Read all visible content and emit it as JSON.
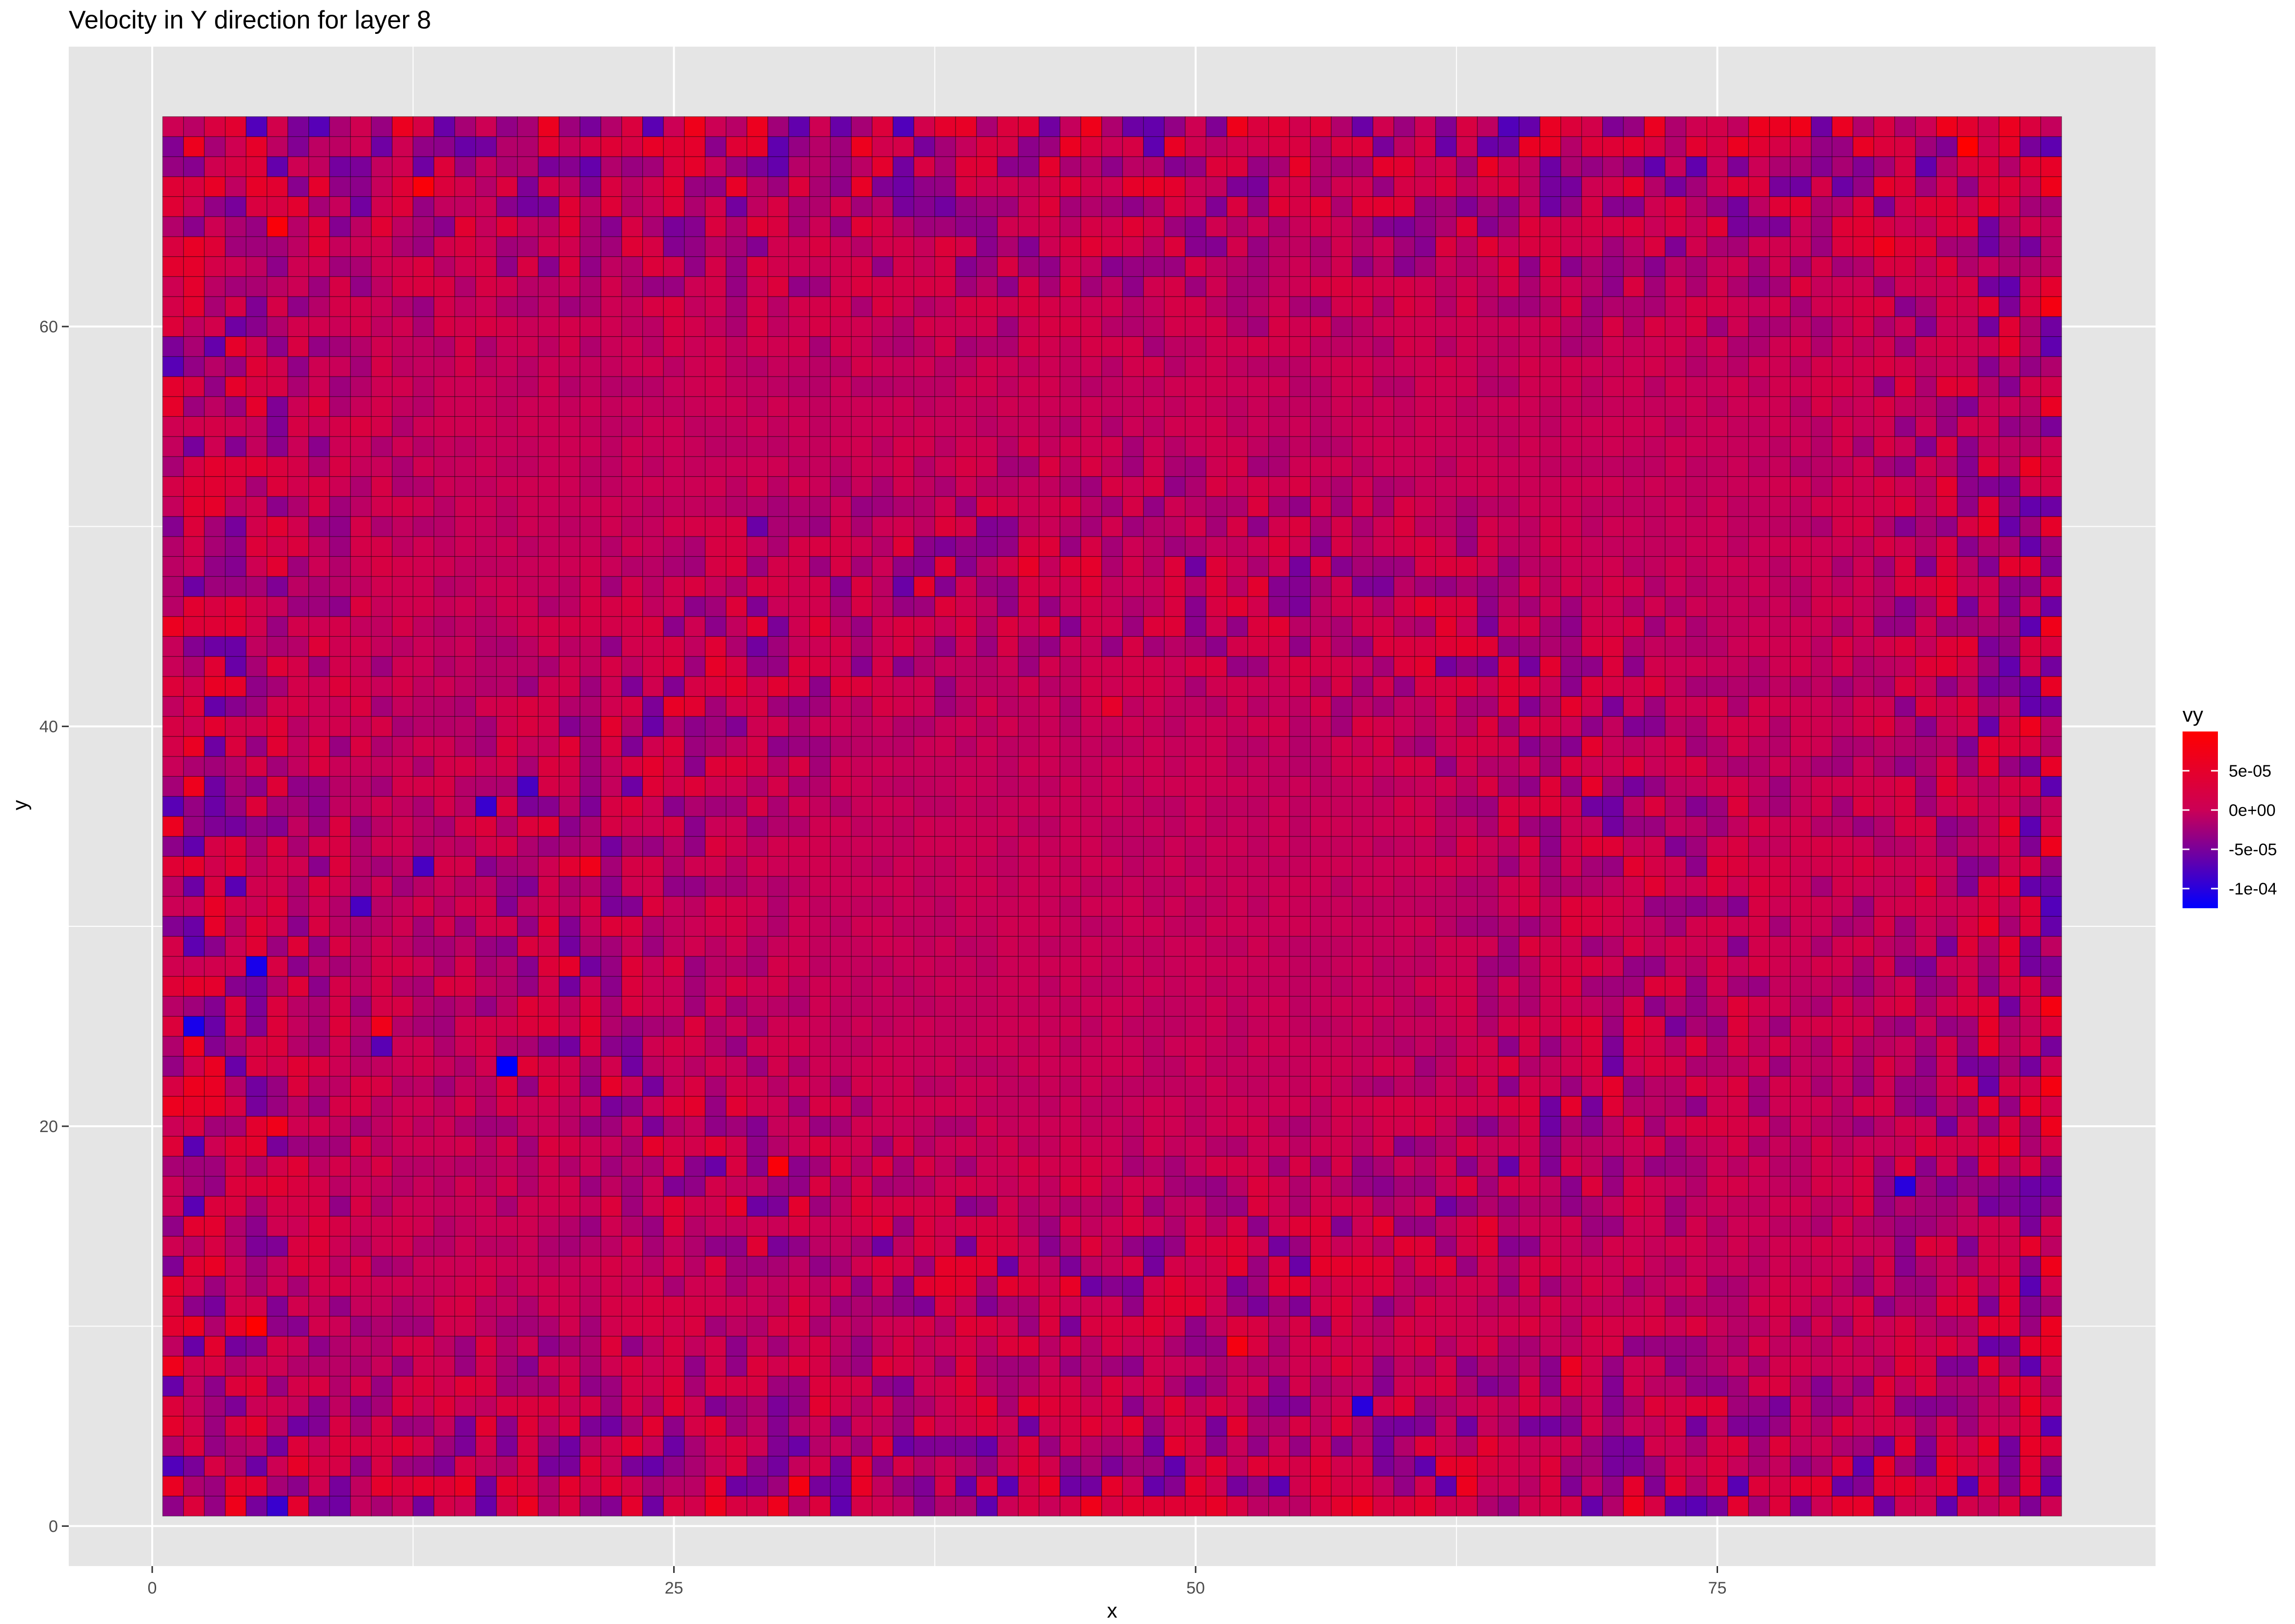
{
  "chart_data": {
    "type": "heatmap",
    "title": "Velocity in Y direction for layer 8",
    "xlabel": "x",
    "ylabel": "y",
    "x_ticks": [
      0,
      25,
      50,
      75
    ],
    "y_ticks": [
      0,
      20,
      40,
      60
    ],
    "x_range": [
      1,
      91
    ],
    "y_range": [
      1,
      70
    ],
    "xlim": [
      -4,
      96
    ],
    "ylim": [
      -2,
      74
    ],
    "grid": true,
    "value_name": "vy",
    "value_range": [
      -0.000125,
      0.0001
    ],
    "colors": {
      "low": "#0000ff",
      "mid": "#cc0055",
      "high": "#ff0000",
      "tile_border": "#000000",
      "panel": "#e5e5e5",
      "grid": "#ffffff"
    },
    "legend": {
      "title": "vy",
      "placement": "right",
      "breaks": [
        5e-05,
        0,
        -5e-05,
        -0.0001
      ],
      "labels": [
        "5e-05",
        "0e+00",
        "-5e-05",
        "-1e-04"
      ]
    },
    "notable_cells": [
      {
        "x": 17,
        "y": 23,
        "vy": -0.000125
      },
      {
        "x": 2,
        "y": 25,
        "vy": -0.00011
      },
      {
        "x": 5,
        "y": 28,
        "vy": -0.00011
      },
      {
        "x": 84,
        "y": 17,
        "vy": -0.0001
      },
      {
        "x": 58,
        "y": 6,
        "vy": -0.0001
      },
      {
        "x": 6,
        "y": 1,
        "vy": -9e-05
      },
      {
        "x": 16,
        "y": 36,
        "vy": -9e-05
      },
      {
        "x": 18,
        "y": 37,
        "vy": -8e-05
      },
      {
        "x": 13,
        "y": 33,
        "vy": -8e-05
      },
      {
        "x": 10,
        "y": 31,
        "vy": -8e-05
      },
      {
        "x": 4,
        "y": 32,
        "vy": -7e-05
      },
      {
        "x": 11,
        "y": 24,
        "vy": -7e-05
      },
      {
        "x": 29,
        "y": 50,
        "vy": -6e-05
      },
      {
        "x": 55,
        "y": 13,
        "vy": -6e-05
      },
      {
        "x": 5,
        "y": 10,
        "vy": 0.0001
      },
      {
        "x": 6,
        "y": 65,
        "vy": 9e-05
      },
      {
        "x": 87,
        "y": 69,
        "vy": 0.0001
      },
      {
        "x": 13,
        "y": 67,
        "vy": 9e-05
      },
      {
        "x": 30,
        "y": 18,
        "vy": 9e-05
      },
      {
        "x": 52,
        "y": 9,
        "vy": 8e-05
      },
      {
        "x": 31,
        "y": 2,
        "vy": 8e-05
      },
      {
        "x": 91,
        "y": 61,
        "vy": 8e-05
      },
      {
        "x": 91,
        "y": 26,
        "vy": 8e-05
      },
      {
        "x": 91,
        "y": 22,
        "vy": 8e-05
      },
      {
        "x": 6,
        "y": 20,
        "vy": 7e-05
      },
      {
        "x": 11,
        "y": 25,
        "vy": 7e-05
      },
      {
        "x": 21,
        "y": 33,
        "vy": 7e-05
      },
      {
        "x": 83,
        "y": 64,
        "vy": 7e-05
      },
      {
        "x": 68,
        "y": 8,
        "vy": 6e-05
      },
      {
        "x": 46,
        "y": 41,
        "vy": 5e-05
      }
    ]
  }
}
